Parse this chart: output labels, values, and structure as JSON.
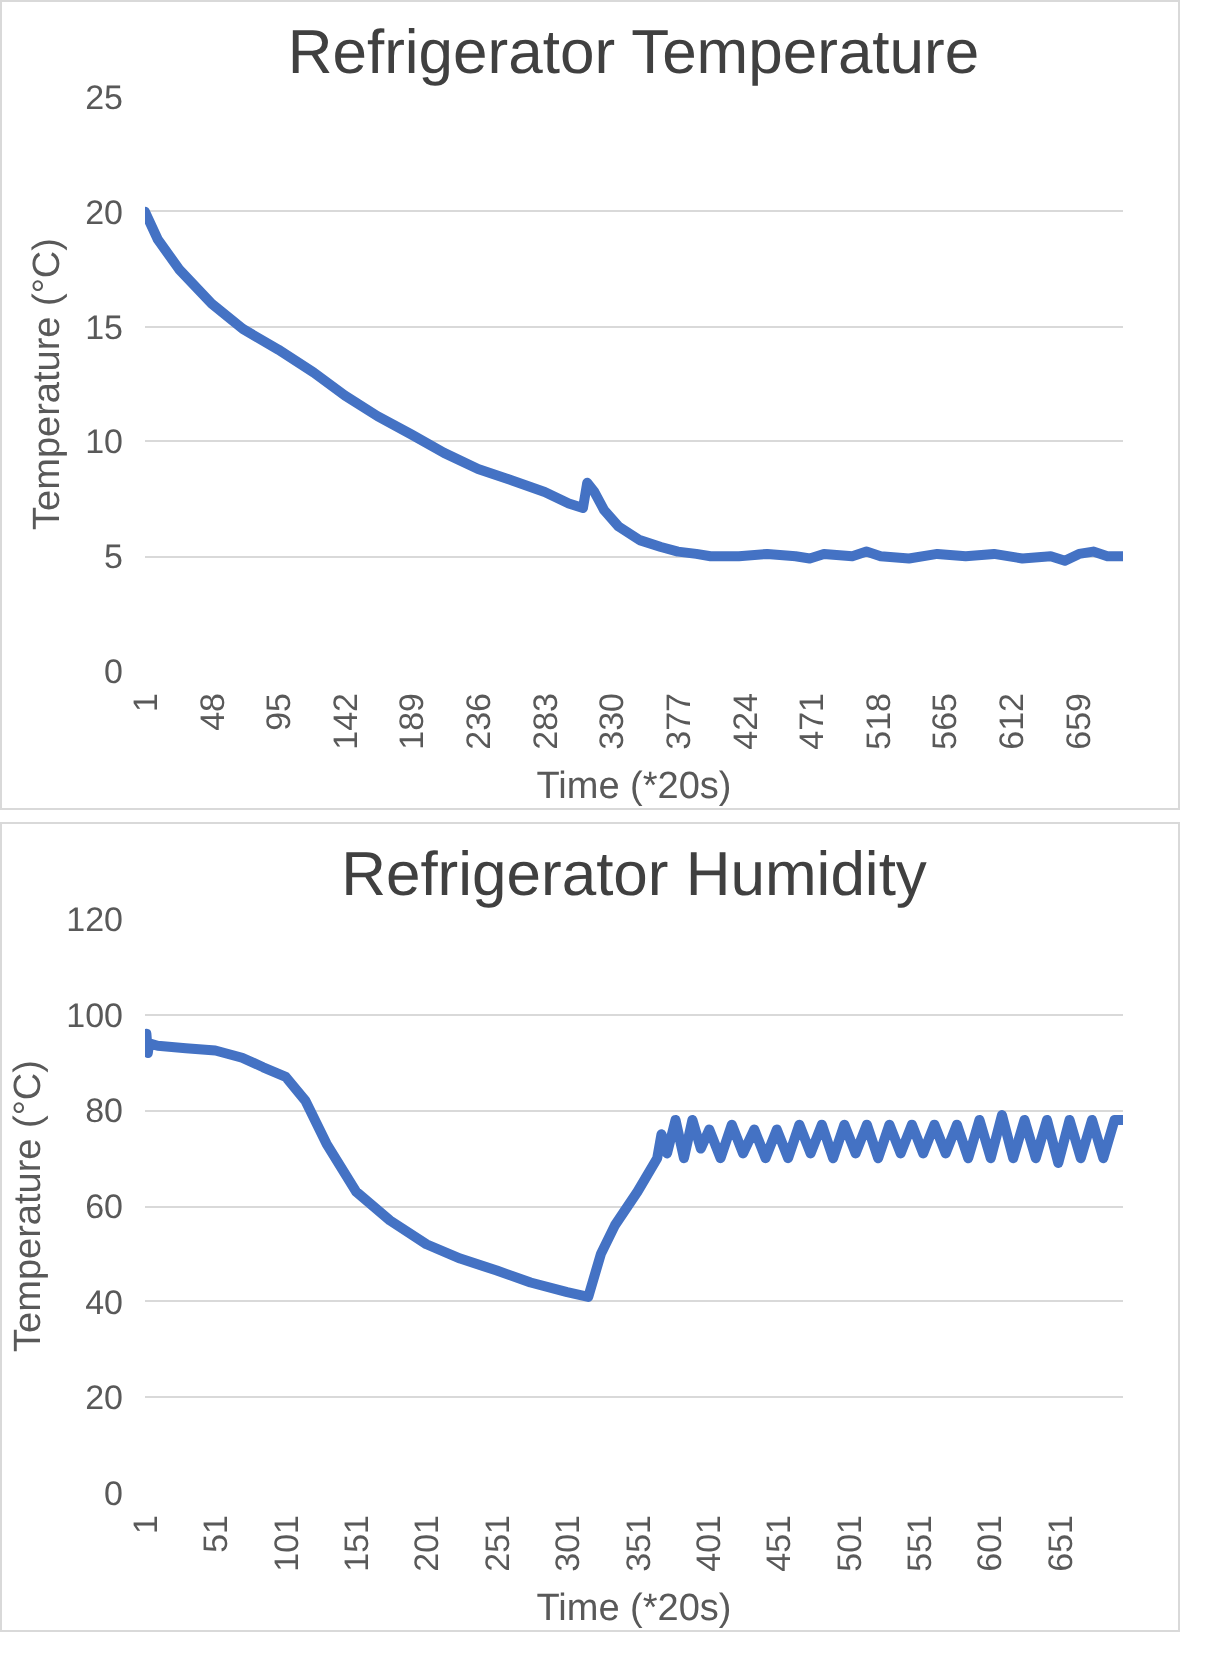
{
  "chart_data": [
    {
      "type": "line",
      "title": "Refrigerator Temperature",
      "xlabel": "Time (*20s)",
      "ylabel": "Temperature (°C)",
      "series": [
        {
          "color": "#4472c4",
          "x": [
            1,
            10,
            25,
            48,
            70,
            95,
            120,
            142,
            165,
            189,
            212,
            236,
            260,
            283,
            300,
            310,
            313,
            318,
            325,
            335,
            350,
            365,
            377,
            390,
            400,
            420,
            440,
            460,
            470,
            480,
            500,
            510,
            520,
            540,
            560,
            580,
            600,
            620,
            640,
            650,
            660,
            670,
            680,
            691
          ],
          "values": [
            20,
            18.8,
            17.5,
            16,
            14.9,
            14,
            13,
            12,
            11.1,
            10.3,
            9.5,
            8.8,
            8.3,
            7.8,
            7.3,
            7.1,
            8.2,
            7.8,
            7,
            6.3,
            5.7,
            5.4,
            5.2,
            5.1,
            5,
            5,
            5.1,
            5,
            4.9,
            5.1,
            5,
            5.2,
            5,
            4.9,
            5.1,
            5,
            5.1,
            4.9,
            5,
            4.8,
            5.1,
            5.2,
            5,
            5
          ]
        }
      ],
      "xlim": [
        1,
        691
      ],
      "xticks": [
        1,
        48,
        95,
        142,
        189,
        236,
        283,
        330,
        377,
        424,
        471,
        518,
        565,
        612,
        659
      ],
      "ylim": [
        0,
        25
      ],
      "yticks": [
        0,
        5,
        10,
        15,
        20,
        25
      ],
      "grid": "y"
    },
    {
      "type": "line",
      "title": "Refrigerator Humidity",
      "xlabel": "Time (*20s)",
      "ylabel": "Temperature (°C)",
      "series": [
        {
          "color": "#4472c4",
          "x": [
            1,
            2,
            3,
            4,
            10,
            30,
            51,
            70,
            85,
            101,
            115,
            130,
            151,
            175,
            201,
            225,
            251,
            275,
            301,
            316,
            325,
            335,
            351,
            365,
            368,
            372,
            378,
            384,
            390,
            396,
            402,
            410,
            418,
            426,
            434,
            442,
            450,
            458,
            466,
            474,
            482,
            490,
            498,
            506,
            514,
            522,
            530,
            538,
            546,
            554,
            562,
            570,
            578,
            586,
            594,
            602,
            610,
            618,
            626,
            634,
            642,
            650,
            658,
            666,
            674,
            682,
            690,
            696
          ],
          "values": [
            93,
            96,
            92,
            94,
            93.5,
            93,
            92.5,
            91,
            89,
            87,
            82,
            73,
            63,
            57,
            52,
            49,
            46.5,
            44,
            42,
            41,
            50,
            56,
            63,
            70,
            75,
            71,
            78,
            70,
            78,
            72,
            76,
            70,
            77,
            71,
            76,
            70,
            76,
            70,
            77,
            71,
            77,
            70,
            77,
            71,
            77,
            70,
            77,
            71,
            77,
            71,
            77,
            71,
            77,
            70,
            78,
            70,
            79,
            70,
            78,
            70,
            78,
            69,
            78,
            70,
            78,
            70,
            78,
            78
          ]
        }
      ],
      "xlim": [
        1,
        696
      ],
      "xticks": [
        1,
        51,
        101,
        151,
        201,
        251,
        301,
        351,
        401,
        451,
        501,
        551,
        601,
        651
      ],
      "ylim": [
        0,
        120
      ],
      "yticks": [
        0,
        20,
        40,
        60,
        80,
        100,
        120
      ],
      "grid": "y"
    }
  ]
}
